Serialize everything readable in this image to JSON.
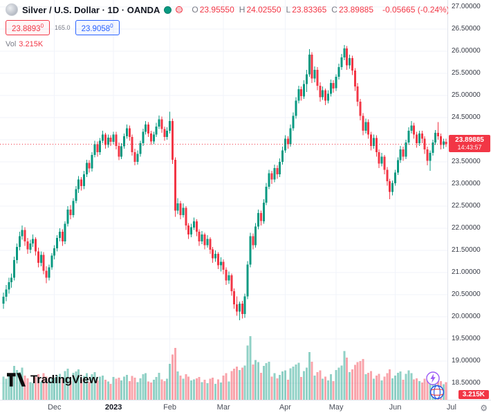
{
  "header": {
    "title": "Silver / U.S. Dollar · 1D · OANDA",
    "ohlc": {
      "o_label": "O",
      "o": "23.95550",
      "h_label": "H",
      "h": "24.02550",
      "l_label": "L",
      "l": "23.83365",
      "c_label": "C",
      "c": "23.89885",
      "change": "-0.05665 (-0.24%)"
    },
    "quote": {
      "bid": "23.8893",
      "bid_sup": "0",
      "spread": "165.0",
      "ask": "23.9058",
      "ask_sup": "0"
    },
    "volume": {
      "label": "Vol",
      "value": "3.215K"
    }
  },
  "price_scale": {
    "min": 18.5,
    "max": 27.0,
    "step": 0.5,
    "decimals": 5,
    "tag_price": "23.89885",
    "countdown": "14:43:57",
    "volume_tag": "3.215K"
  },
  "time_scale": {
    "months": [
      {
        "label": "Dec",
        "index": 19
      },
      {
        "label": "2023",
        "index": 41,
        "bold": true
      },
      {
        "label": "Feb",
        "index": 62
      },
      {
        "label": "Mar",
        "index": 82
      },
      {
        "label": "Apr",
        "index": 105
      },
      {
        "label": "May",
        "index": 124
      },
      {
        "label": "Jun",
        "index": 146
      },
      {
        "label": "Jul",
        "index": 167
      }
    ]
  },
  "logo": {
    "text": "TradingView"
  },
  "icons": {
    "settings_gear": "⚙"
  },
  "colors": {
    "up": "#089981",
    "down": "#F23645",
    "accent_blue": "#2962FF",
    "grid": "#F0F3FA",
    "border": "#E0E3EB",
    "axis_text": "#363A45",
    "muted": "#787B86"
  },
  "chart_data": {
    "type": "candlestick",
    "title": "Silver / U.S. Dollar",
    "interval": "1D",
    "exchange": "OANDA",
    "ylim": [
      18.125,
      27.156
    ],
    "grid": true,
    "candles_format": "[open, high, low, close, volume_thousands]",
    "candles": [
      [
        20.3,
        20.55,
        20.18,
        20.45,
        4.2
      ],
      [
        20.45,
        20.72,
        20.35,
        20.62,
        3.8
      ],
      [
        20.62,
        20.88,
        20.52,
        20.78,
        4.5
      ],
      [
        20.78,
        20.98,
        20.66,
        20.88,
        3.6
      ],
      [
        20.88,
        21.36,
        20.82,
        21.28,
        6.1
      ],
      [
        21.28,
        21.66,
        21.2,
        21.58,
        5.4
      ],
      [
        21.58,
        21.92,
        21.5,
        21.82,
        5.0
      ],
      [
        21.82,
        22.06,
        21.74,
        21.96,
        5.8
      ],
      [
        21.96,
        22.02,
        21.6,
        21.7,
        4.4
      ],
      [
        21.7,
        21.78,
        21.42,
        21.52,
        3.9
      ],
      [
        21.52,
        21.74,
        21.44,
        21.66,
        3.2
      ],
      [
        21.66,
        21.86,
        21.58,
        21.76,
        3.0
      ],
      [
        21.76,
        21.8,
        21.38,
        21.48,
        4.1
      ],
      [
        21.48,
        21.56,
        21.12,
        21.22,
        4.6
      ],
      [
        21.22,
        21.48,
        21.14,
        21.4,
        3.3
      ],
      [
        21.4,
        21.46,
        20.96,
        21.04,
        4.8
      ],
      [
        21.04,
        21.14,
        20.76,
        20.88,
        4.2
      ],
      [
        20.88,
        21.18,
        20.82,
        21.12,
        3.5
      ],
      [
        21.12,
        21.44,
        21.06,
        21.38,
        3.9
      ],
      [
        21.38,
        21.62,
        21.3,
        21.55,
        4.0
      ],
      [
        21.55,
        21.84,
        21.48,
        21.78,
        4.4
      ],
      [
        21.78,
        22.0,
        21.7,
        21.92,
        4.7
      ],
      [
        21.92,
        21.98,
        21.6,
        21.7,
        3.8
      ],
      [
        21.7,
        22.16,
        21.64,
        22.1,
        5.2
      ],
      [
        22.1,
        22.5,
        22.04,
        22.42,
        5.6
      ],
      [
        22.42,
        22.52,
        22.2,
        22.3,
        3.4
      ],
      [
        22.3,
        22.68,
        22.24,
        22.62,
        4.9
      ],
      [
        22.62,
        22.95,
        22.56,
        22.88,
        5.1
      ],
      [
        22.88,
        23.18,
        22.8,
        23.1,
        5.5
      ],
      [
        23.1,
        23.16,
        22.85,
        22.95,
        3.7
      ],
      [
        22.95,
        23.3,
        22.88,
        23.22,
        4.3
      ],
      [
        23.22,
        23.55,
        23.16,
        23.48,
        4.8
      ],
      [
        23.48,
        23.54,
        23.26,
        23.35,
        3.2
      ],
      [
        23.35,
        23.72,
        23.28,
        23.66,
        4.6
      ],
      [
        23.66,
        23.98,
        23.6,
        23.9,
        5.0
      ],
      [
        23.9,
        23.96,
        23.62,
        23.72,
        3.5
      ],
      [
        23.72,
        24.04,
        23.66,
        23.98,
        4.2
      ],
      [
        23.98,
        24.2,
        23.92,
        24.12,
        4.4
      ],
      [
        24.12,
        24.16,
        23.8,
        23.88,
        3.6
      ],
      [
        23.88,
        24.12,
        23.82,
        24.05,
        3.3
      ],
      [
        24.05,
        24.1,
        23.86,
        23.95,
        2.9
      ],
      [
        23.95,
        24.18,
        23.9,
        24.12,
        4.1
      ],
      [
        24.12,
        24.18,
        23.78,
        23.86,
        3.8
      ],
      [
        23.86,
        23.94,
        23.54,
        23.62,
        4.0
      ],
      [
        23.62,
        23.92,
        23.56,
        23.85,
        3.5
      ],
      [
        23.85,
        24.14,
        23.8,
        24.08,
        4.2
      ],
      [
        24.08,
        24.34,
        24.02,
        24.26,
        4.5
      ],
      [
        24.26,
        24.32,
        23.98,
        24.06,
        3.4
      ],
      [
        24.06,
        24.12,
        23.64,
        23.72,
        4.3
      ],
      [
        23.72,
        23.8,
        23.42,
        23.5,
        4.0
      ],
      [
        23.5,
        23.76,
        23.44,
        23.68,
        3.2
      ],
      [
        23.68,
        23.98,
        23.62,
        23.92,
        3.9
      ],
      [
        23.92,
        24.25,
        23.86,
        24.18,
        4.6
      ],
      [
        24.18,
        24.42,
        24.12,
        24.34,
        4.8
      ],
      [
        24.34,
        24.4,
        24.06,
        24.14,
        3.3
      ],
      [
        24.14,
        24.2,
        23.88,
        23.96,
        3.1
      ],
      [
        23.96,
        24.18,
        23.9,
        24.12,
        3.6
      ],
      [
        24.12,
        24.38,
        24.06,
        24.3,
        4.1
      ],
      [
        24.3,
        24.55,
        24.24,
        24.46,
        4.9
      ],
      [
        24.46,
        24.52,
        24.16,
        24.24,
        3.7
      ],
      [
        24.24,
        24.3,
        23.98,
        24.06,
        3.4
      ],
      [
        24.06,
        24.28,
        24.0,
        24.2,
        3.8
      ],
      [
        24.2,
        24.63,
        24.14,
        24.42,
        6.5
      ],
      [
        24.42,
        24.48,
        23.45,
        23.55,
        8.2
      ],
      [
        23.55,
        23.6,
        22.26,
        22.4,
        9.4
      ],
      [
        22.4,
        22.68,
        22.32,
        22.56,
        5.1
      ],
      [
        22.56,
        22.62,
        22.2,
        22.3,
        4.4
      ],
      [
        22.3,
        22.56,
        22.24,
        22.46,
        3.8
      ],
      [
        22.46,
        22.5,
        21.96,
        22.06,
        4.6
      ],
      [
        22.06,
        22.12,
        21.76,
        21.86,
        4.2
      ],
      [
        21.86,
        22.1,
        21.8,
        22.02,
        3.5
      ],
      [
        22.02,
        22.24,
        21.96,
        22.16,
        3.7
      ],
      [
        22.16,
        22.2,
        21.82,
        21.92,
        3.9
      ],
      [
        21.92,
        21.98,
        21.6,
        21.7,
        4.1
      ],
      [
        21.7,
        21.94,
        21.64,
        21.86,
        3.2
      ],
      [
        21.86,
        21.9,
        21.52,
        21.62,
        3.6
      ],
      [
        21.62,
        21.84,
        21.56,
        21.76,
        3.0
      ],
      [
        21.76,
        21.8,
        21.42,
        21.52,
        3.8
      ],
      [
        21.52,
        21.58,
        21.22,
        21.32,
        4.0
      ],
      [
        21.32,
        21.5,
        21.24,
        21.42,
        2.9
      ],
      [
        21.42,
        21.46,
        21.08,
        21.16,
        3.7
      ],
      [
        21.16,
        21.34,
        21.02,
        21.24,
        3.1
      ],
      [
        21.24,
        21.3,
        20.96,
        21.06,
        4.4
      ],
      [
        21.06,
        21.12,
        20.72,
        20.82,
        4.8
      ],
      [
        20.82,
        21.02,
        20.74,
        20.94,
        3.3
      ],
      [
        20.94,
        20.98,
        20.48,
        20.58,
        5.2
      ],
      [
        20.58,
        20.64,
        20.18,
        20.28,
        5.6
      ],
      [
        20.28,
        20.46,
        20.02,
        20.12,
        6.0
      ],
      [
        20.12,
        20.34,
        19.92,
        20.3,
        5.4
      ],
      [
        20.3,
        20.36,
        19.96,
        20.06,
        5.8
      ],
      [
        20.06,
        20.52,
        19.98,
        20.46,
        6.2
      ],
      [
        20.46,
        21.26,
        20.4,
        21.18,
        9.8
      ],
      [
        21.18,
        21.9,
        21.12,
        21.82,
        11.5
      ],
      [
        21.82,
        21.88,
        21.52,
        21.62,
        6.4
      ],
      [
        21.62,
        22.12,
        21.56,
        22.04,
        7.2
      ],
      [
        22.04,
        22.42,
        21.98,
        22.34,
        6.8
      ],
      [
        22.34,
        22.4,
        22.06,
        22.16,
        4.9
      ],
      [
        22.16,
        22.66,
        22.1,
        22.58,
        6.1
      ],
      [
        22.58,
        23.02,
        22.52,
        22.94,
        6.6
      ],
      [
        22.94,
        23.32,
        22.88,
        23.24,
        6.9
      ],
      [
        23.24,
        23.3,
        23.0,
        23.1,
        4.2
      ],
      [
        23.1,
        23.44,
        23.04,
        23.36,
        4.8
      ],
      [
        23.36,
        23.42,
        23.12,
        23.22,
        3.9
      ],
      [
        23.22,
        23.58,
        23.16,
        23.5,
        4.5
      ],
      [
        23.5,
        23.84,
        23.44,
        23.76,
        5.1
      ],
      [
        23.76,
        24.1,
        23.7,
        24.02,
        5.3
      ],
      [
        24.02,
        24.08,
        23.8,
        23.9,
        3.6
      ],
      [
        23.9,
        24.34,
        23.84,
        24.26,
        5.7
      ],
      [
        24.26,
        24.62,
        24.2,
        24.54,
        6.0
      ],
      [
        24.54,
        24.96,
        24.48,
        24.88,
        6.4
      ],
      [
        24.88,
        25.22,
        24.82,
        25.14,
        6.7
      ],
      [
        25.14,
        25.2,
        24.88,
        24.98,
        4.1
      ],
      [
        24.98,
        25.34,
        24.92,
        25.26,
        5.2
      ],
      [
        25.26,
        25.58,
        25.08,
        25.48,
        5.8
      ],
      [
        25.48,
        26.05,
        25.42,
        25.92,
        8.6
      ],
      [
        25.92,
        25.98,
        25.28,
        25.38,
        6.9
      ],
      [
        25.38,
        25.66,
        25.3,
        25.58,
        4.4
      ],
      [
        25.58,
        25.64,
        25.12,
        25.22,
        5.0
      ],
      [
        25.22,
        25.3,
        24.86,
        24.96,
        5.3
      ],
      [
        24.96,
        25.2,
        24.9,
        25.12,
        3.8
      ],
      [
        25.12,
        25.16,
        24.78,
        24.88,
        4.2
      ],
      [
        24.88,
        25.12,
        24.82,
        25.04,
        3.5
      ],
      [
        25.04,
        25.36,
        24.98,
        25.28,
        4.6
      ],
      [
        25.28,
        25.34,
        25.06,
        25.16,
        3.4
      ],
      [
        25.16,
        25.48,
        25.1,
        25.42,
        5.4
      ],
      [
        25.42,
        25.72,
        25.36,
        25.64,
        5.8
      ],
      [
        25.64,
        25.94,
        25.58,
        25.86,
        6.2
      ],
      [
        25.86,
        26.14,
        25.8,
        26.06,
        8.8
      ],
      [
        26.06,
        26.12,
        25.58,
        25.68,
        7.6
      ],
      [
        25.68,
        25.92,
        25.6,
        25.84,
        5.0
      ],
      [
        25.84,
        25.9,
        25.46,
        25.56,
        5.5
      ],
      [
        25.56,
        25.62,
        25.1,
        25.2,
        6.3
      ],
      [
        25.2,
        25.28,
        24.76,
        24.86,
        6.8
      ],
      [
        24.86,
        24.92,
        24.44,
        24.54,
        7.0
      ],
      [
        24.54,
        24.6,
        24.1,
        24.2,
        7.4
      ],
      [
        24.2,
        24.48,
        24.14,
        24.4,
        4.6
      ],
      [
        24.4,
        24.46,
        24.02,
        24.12,
        4.9
      ],
      [
        24.12,
        24.18,
        23.76,
        23.86,
        5.2
      ],
      [
        23.86,
        24.12,
        23.8,
        24.04,
        3.8
      ],
      [
        24.04,
        24.1,
        23.62,
        23.72,
        4.4
      ],
      [
        23.72,
        23.78,
        23.36,
        23.46,
        4.7
      ],
      [
        23.46,
        23.7,
        23.4,
        23.62,
        3.5
      ],
      [
        23.62,
        23.66,
        23.22,
        23.32,
        4.2
      ],
      [
        23.32,
        23.38,
        22.96,
        23.06,
        4.8
      ],
      [
        23.06,
        23.12,
        22.66,
        22.82,
        5.5
      ],
      [
        22.82,
        23.08,
        22.74,
        23.02,
        3.9
      ],
      [
        23.02,
        23.32,
        22.96,
        23.26,
        4.4
      ],
      [
        23.26,
        23.6,
        23.2,
        23.54,
        4.9
      ],
      [
        23.54,
        23.86,
        23.48,
        23.78,
        5.1
      ],
      [
        23.78,
        23.84,
        23.52,
        23.62,
        3.6
      ],
      [
        23.62,
        24.0,
        23.56,
        23.94,
        4.7
      ],
      [
        23.94,
        24.28,
        23.88,
        24.2,
        5.3
      ],
      [
        24.2,
        24.42,
        24.14,
        24.32,
        4.8
      ],
      [
        24.32,
        24.38,
        24.02,
        24.12,
        3.7
      ],
      [
        24.12,
        24.18,
        23.82,
        23.92,
        3.9
      ],
      [
        23.92,
        24.2,
        23.86,
        24.14,
        3.4
      ],
      [
        24.14,
        24.2,
        23.92,
        24.02,
        3.1
      ],
      [
        24.02,
        24.08,
        23.68,
        23.78,
        3.8
      ],
      [
        23.78,
        23.84,
        23.42,
        23.52,
        4.3
      ],
      [
        23.52,
        23.76,
        23.3,
        23.7,
        3.6
      ],
      [
        23.7,
        24.0,
        23.64,
        23.94,
        4.0
      ],
      [
        23.94,
        24.22,
        23.88,
        24.16,
        4.5
      ],
      [
        24.16,
        24.4,
        24.0,
        24.08,
        3.8
      ],
      [
        24.08,
        24.14,
        23.78,
        23.88,
        3.4
      ],
      [
        23.88,
        24.02,
        23.8,
        23.96,
        2.8
      ],
      [
        23.9555,
        24.0255,
        23.83365,
        23.89885,
        3.215
      ]
    ]
  }
}
